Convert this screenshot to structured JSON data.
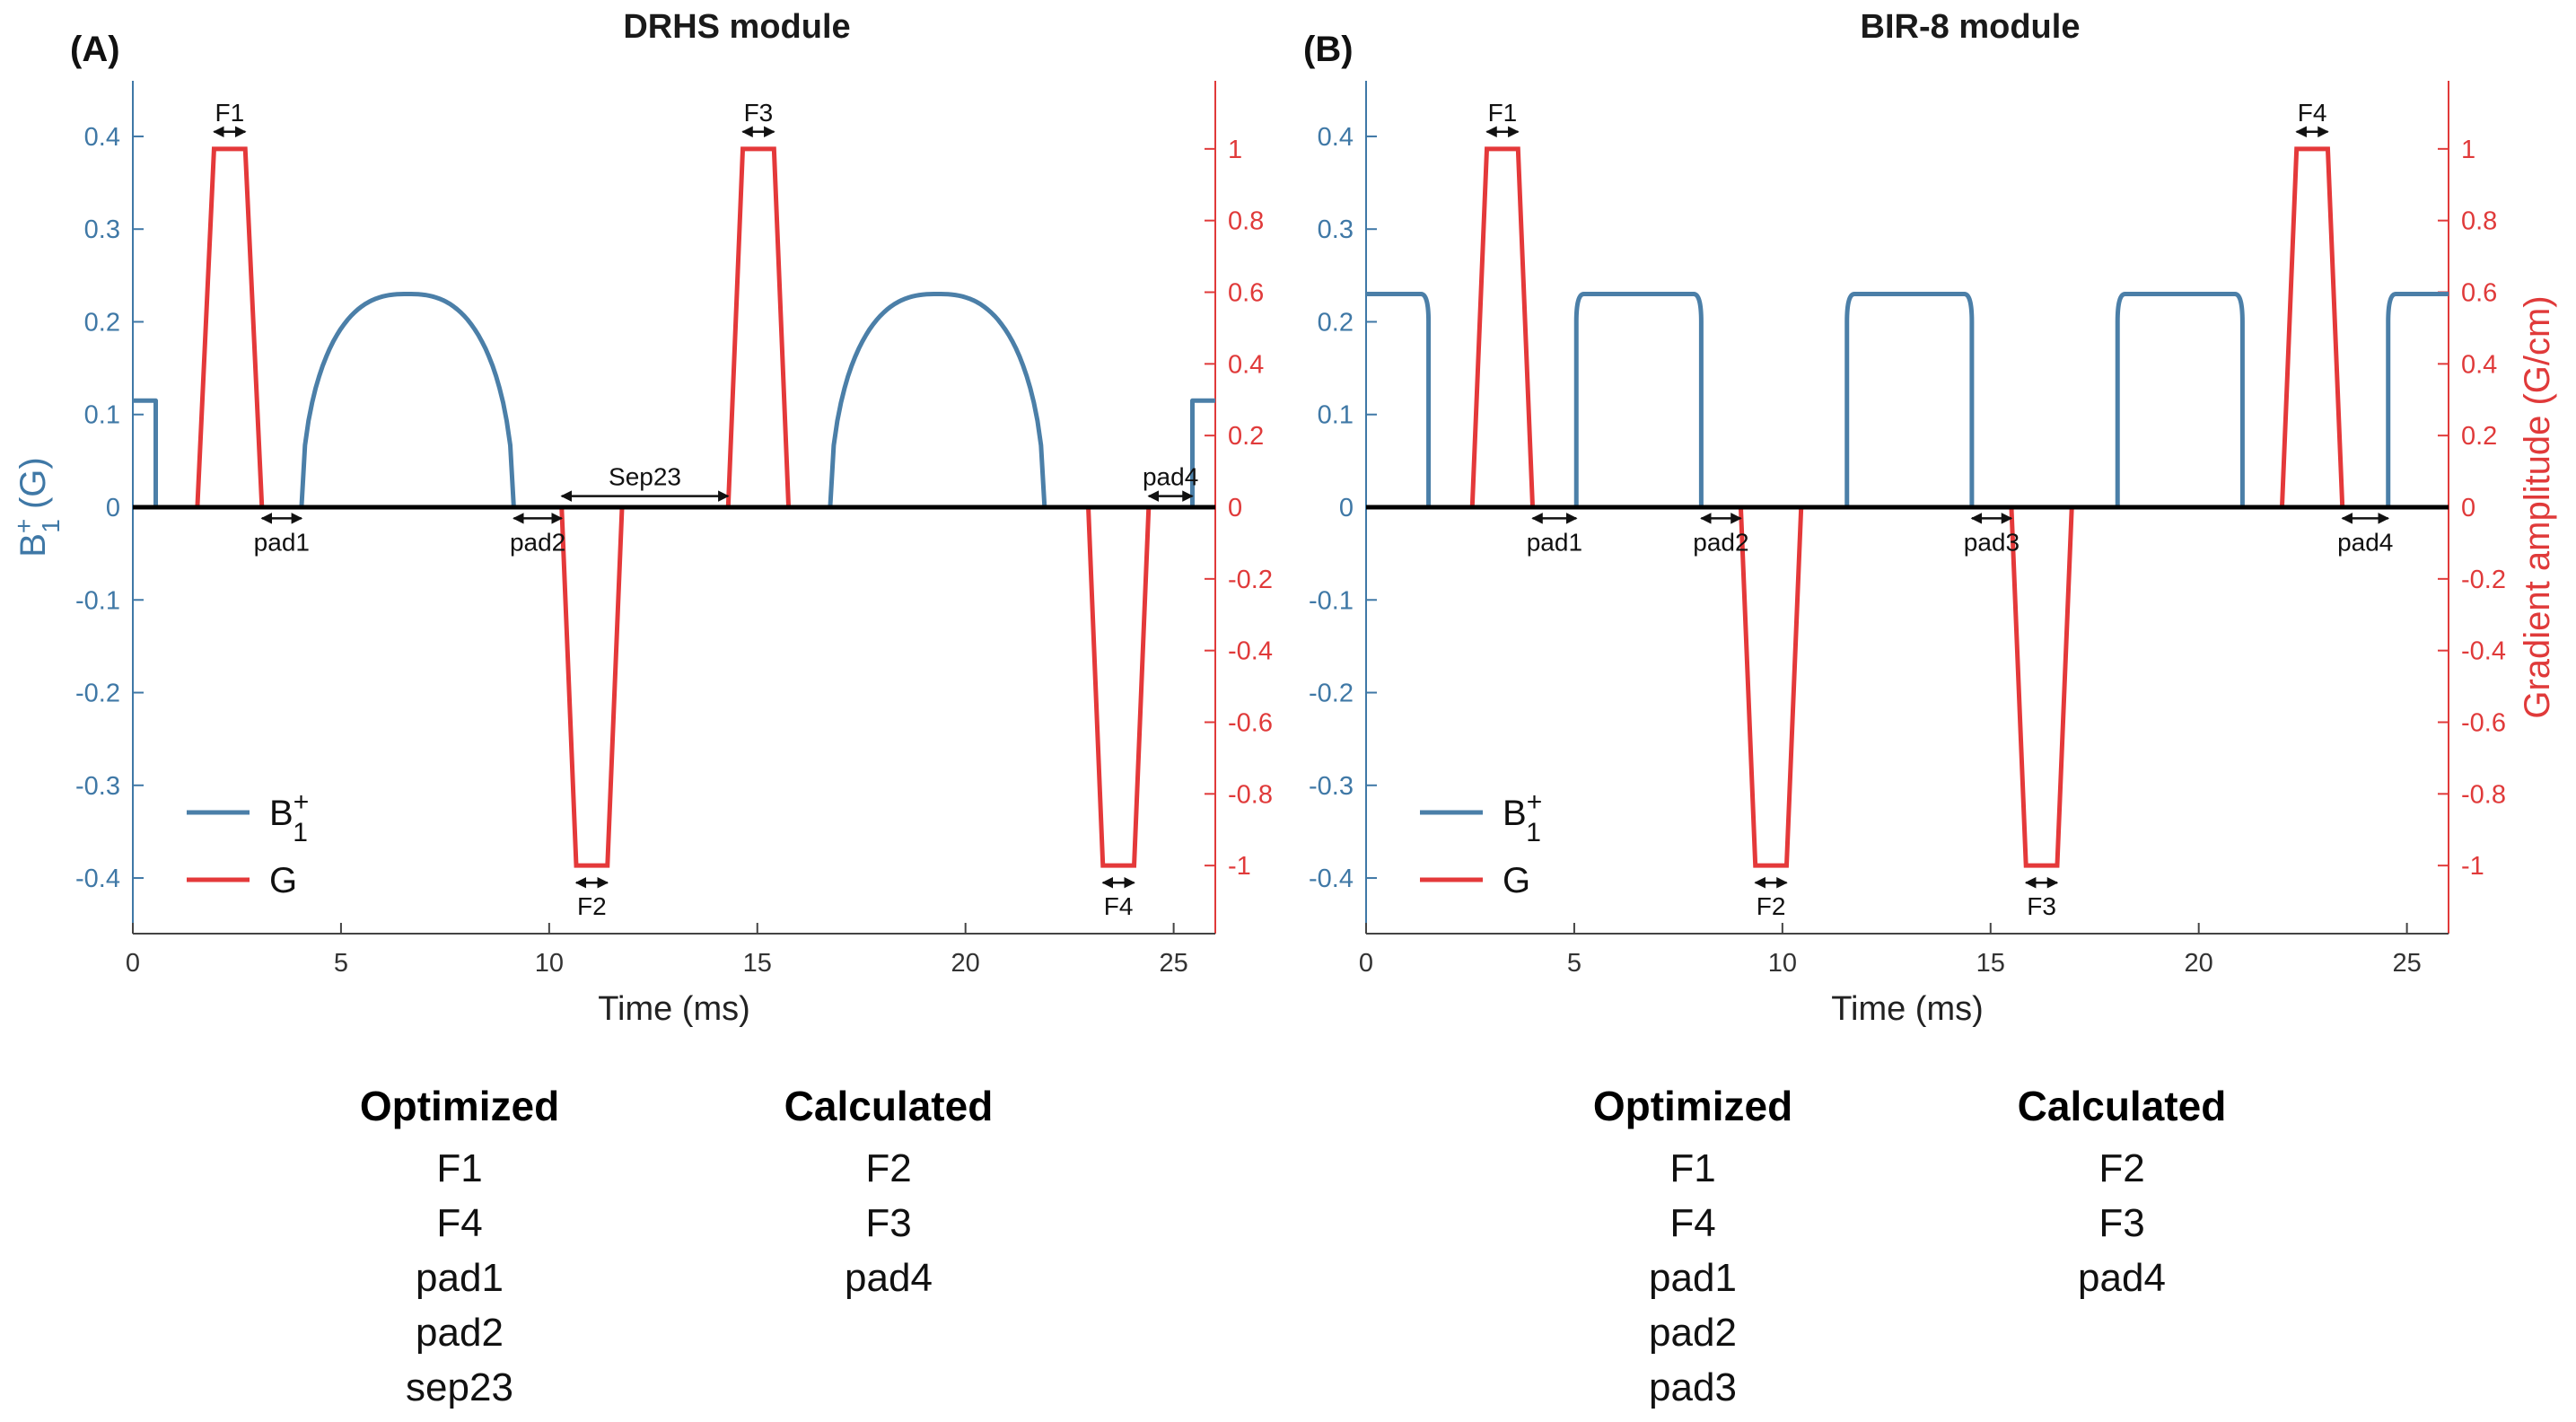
{
  "colors": {
    "b1": "#4b7fa8",
    "g": "#e4393a",
    "axis_b1": "#3f78a6",
    "axis_g": "#e03a3a",
    "baseline": "#000000",
    "annotation": "#111111"
  },
  "shared": {
    "xlabel": "Time (ms)",
    "y_left_label": "B",
    "y_left_sup": "+",
    "y_left_sub": "1",
    "y_left_unit": " (G)",
    "y_right_label": "Gradient amplitude (G/cm)",
    "legend_b1": "B",
    "legend_b1_sup": "+",
    "legend_b1_sub": "1",
    "legend_g": "G"
  },
  "chart_data": [
    {
      "type": "line",
      "panel": "(A)",
      "title": "DRHS module",
      "xlim": [
        0,
        26
      ],
      "x_ticks": [
        0,
        5,
        10,
        15,
        20,
        25
      ],
      "x_tick_labels": [
        "0",
        "5",
        "10",
        "15",
        "20",
        "25"
      ],
      "ylim_left": [
        -0.46,
        0.46
      ],
      "y_left_ticks": [
        -0.4,
        -0.3,
        -0.2,
        -0.1,
        0,
        0.1,
        0.2,
        0.3,
        0.4
      ],
      "y_left_tick_labels": [
        "-0.4",
        "-0.3",
        "-0.2",
        "-0.1",
        "0",
        "0.1",
        "0.2",
        "0.3",
        "0.4"
      ],
      "ylim_right": [
        -1.19,
        1.19
      ],
      "y_right_ticks": [
        -1,
        -0.8,
        -0.6,
        -0.4,
        -0.2,
        0,
        0.2,
        0.4,
        0.6,
        0.8,
        1
      ],
      "y_right_tick_labels": [
        "-1",
        "-0.8",
        "-0.6",
        "-0.4",
        "-0.2",
        "0",
        "0.2",
        "0.4",
        "0.6",
        "0.8",
        "1"
      ],
      "b1_series": [
        {
          "name": "B1+",
          "x": [
            0,
            0.55,
            0.55
          ],
          "y": [
            0.115,
            0.115,
            0
          ]
        },
        {
          "name": "B1+",
          "shape": "arc",
          "x_start": 4.05,
          "x_end": 9.15,
          "peak": 0.23
        },
        {
          "name": "B1+",
          "shape": "arc",
          "x_start": 16.75,
          "x_end": 21.9,
          "peak": 0.23
        },
        {
          "name": "B1+",
          "x": [
            25.45,
            25.45,
            26
          ],
          "y": [
            0,
            0.115,
            0.115
          ]
        }
      ],
      "g_series": [
        {
          "name": "G",
          "x": [
            1.55,
            1.95,
            2.7,
            3.1
          ],
          "y": [
            0,
            1,
            1,
            0
          ]
        },
        {
          "name": "G",
          "x": [
            10.3,
            10.65,
            11.4,
            11.75
          ],
          "y": [
            0,
            -1,
            -1,
            0
          ]
        },
        {
          "name": "G",
          "x": [
            14.3,
            14.65,
            15.4,
            15.75
          ],
          "y": [
            0,
            1,
            1,
            0
          ]
        },
        {
          "name": "G",
          "x": [
            22.95,
            23.3,
            24.05,
            24.4
          ],
          "y": [
            0,
            -1,
            -1,
            0
          ]
        }
      ],
      "annotations": [
        {
          "label": "F1",
          "x1": 1.95,
          "x2": 2.7,
          "y_arrow": 0.405,
          "label_pos": "above"
        },
        {
          "label": "F3",
          "x1": 14.65,
          "x2": 15.4,
          "y_arrow": 0.405,
          "label_pos": "above"
        },
        {
          "label": "F2",
          "x1": 10.65,
          "x2": 11.4,
          "y_arrow": -0.405,
          "label_pos": "below"
        },
        {
          "label": "F4",
          "x1": 23.3,
          "x2": 24.05,
          "y_arrow": -0.405,
          "label_pos": "below"
        },
        {
          "label": "pad1",
          "x1": 3.1,
          "x2": 4.05,
          "y_arrow": -0.012,
          "label_pos": "below"
        },
        {
          "label": "pad2",
          "x1": 9.15,
          "x2": 10.3,
          "y_arrow": -0.012,
          "label_pos": "below"
        },
        {
          "label": "Sep23",
          "x1": 10.3,
          "x2": 14.3,
          "y_arrow": 0.012,
          "label_pos": "above"
        },
        {
          "label": "pad4",
          "x1": 24.4,
          "x2": 25.45,
          "y_arrow": 0.012,
          "label_pos": "above"
        }
      ],
      "legend": [
        "B1+",
        "G"
      ],
      "legend_position": "bottom-left"
    },
    {
      "type": "line",
      "panel": "(B)",
      "title": "BIR-8 module",
      "xlim": [
        0,
        26
      ],
      "x_ticks": [
        0,
        5,
        10,
        15,
        20,
        25
      ],
      "x_tick_labels": [
        "0",
        "5",
        "10",
        "15",
        "20",
        "25"
      ],
      "ylim_left": [
        -0.46,
        0.46
      ],
      "y_left_ticks": [
        -0.4,
        -0.3,
        -0.2,
        -0.1,
        0,
        0.1,
        0.2,
        0.3,
        0.4
      ],
      "y_left_tick_labels": [
        "-0.4",
        "-0.3",
        "-0.2",
        "-0.1",
        "0",
        "0.1",
        "0.2",
        "0.3",
        "0.4"
      ],
      "ylim_right": [
        -1.19,
        1.19
      ],
      "y_right_ticks": [
        -1,
        -0.8,
        -0.6,
        -0.4,
        -0.2,
        0,
        0.2,
        0.4,
        0.6,
        0.8,
        1
      ],
      "y_right_tick_labels": [
        "-1",
        "-0.8",
        "-0.6",
        "-0.4",
        "-0.2",
        "0",
        "0.2",
        "0.4",
        "0.6",
        "0.8",
        "1"
      ],
      "b1_series": [
        {
          "name": "B1+",
          "shape": "plateau",
          "x_start": 0,
          "x_end": 1.5,
          "amp": 0.23,
          "open_start": true
        },
        {
          "name": "B1+",
          "shape": "plateau",
          "x_start": 5.05,
          "x_end": 8.05,
          "amp": 0.23
        },
        {
          "name": "B1+",
          "shape": "plateau",
          "x_start": 11.55,
          "x_end": 14.55,
          "amp": 0.23
        },
        {
          "name": "B1+",
          "shape": "plateau",
          "x_start": 18.05,
          "x_end": 21.05,
          "amp": 0.23
        },
        {
          "name": "B1+",
          "shape": "plateau",
          "x_start": 24.55,
          "x_end": 26,
          "amp": 0.23,
          "open_end": true
        }
      ],
      "g_series": [
        {
          "name": "G",
          "x": [
            2.55,
            2.9,
            3.65,
            4.0
          ],
          "y": [
            0,
            1,
            1,
            0
          ]
        },
        {
          "name": "G",
          "x": [
            9.0,
            9.35,
            10.1,
            10.45
          ],
          "y": [
            0,
            -1,
            -1,
            0
          ]
        },
        {
          "name": "G",
          "x": [
            15.5,
            15.85,
            16.6,
            16.95
          ],
          "y": [
            0,
            -1,
            -1,
            0
          ]
        },
        {
          "name": "G",
          "x": [
            22.0,
            22.35,
            23.1,
            23.45
          ],
          "y": [
            0,
            1,
            1,
            0
          ]
        }
      ],
      "annotations": [
        {
          "label": "F1",
          "x1": 2.9,
          "x2": 3.65,
          "y_arrow": 0.405,
          "label_pos": "above"
        },
        {
          "label": "F4",
          "x1": 22.35,
          "x2": 23.1,
          "y_arrow": 0.405,
          "label_pos": "above"
        },
        {
          "label": "F2",
          "x1": 9.35,
          "x2": 10.1,
          "y_arrow": -0.405,
          "label_pos": "below"
        },
        {
          "label": "F3",
          "x1": 15.85,
          "x2": 16.6,
          "y_arrow": -0.405,
          "label_pos": "below"
        },
        {
          "label": "pad1",
          "x1": 4.0,
          "x2": 5.05,
          "y_arrow": -0.012,
          "label_pos": "below"
        },
        {
          "label": "pad2",
          "x1": 8.05,
          "x2": 9.0,
          "y_arrow": -0.012,
          "label_pos": "below"
        },
        {
          "label": "pad3",
          "x1": 14.55,
          "x2": 15.5,
          "y_arrow": -0.012,
          "label_pos": "below"
        },
        {
          "label": "pad4",
          "x1": 23.45,
          "x2": 24.55,
          "y_arrow": -0.012,
          "label_pos": "below"
        }
      ],
      "legend": [
        "B1+",
        "G"
      ],
      "legend_position": "bottom-left"
    }
  ],
  "tables": [
    {
      "optimized_header": "Optimized",
      "optimized": [
        "F1",
        "F4",
        "pad1",
        "pad2",
        "sep23"
      ],
      "calculated_header": "Calculated",
      "calculated": [
        "F2",
        "F3",
        "pad4"
      ]
    },
    {
      "optimized_header": "Optimized",
      "optimized": [
        "F1",
        "F4",
        "pad1",
        "pad2",
        "pad3"
      ],
      "calculated_header": "Calculated",
      "calculated": [
        "F2",
        "F3",
        "pad4"
      ]
    }
  ]
}
